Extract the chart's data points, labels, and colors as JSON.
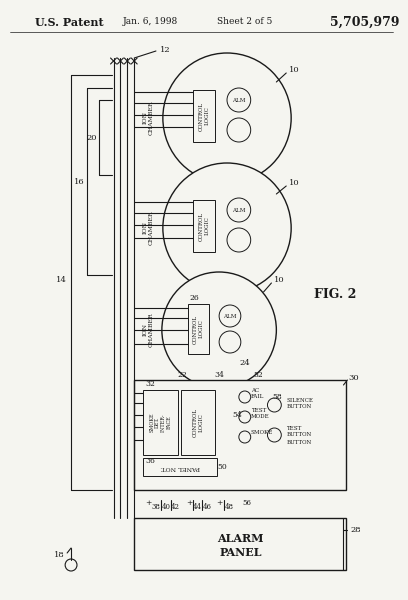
{
  "bg_color": "#f5f5f0",
  "line_color": "#1a1a1a",
  "fig_label": "FIG. 2",
  "patent_number": "5,705,979",
  "date": "Jan. 6, 1998",
  "sheet": "Sheet 2 of 5"
}
